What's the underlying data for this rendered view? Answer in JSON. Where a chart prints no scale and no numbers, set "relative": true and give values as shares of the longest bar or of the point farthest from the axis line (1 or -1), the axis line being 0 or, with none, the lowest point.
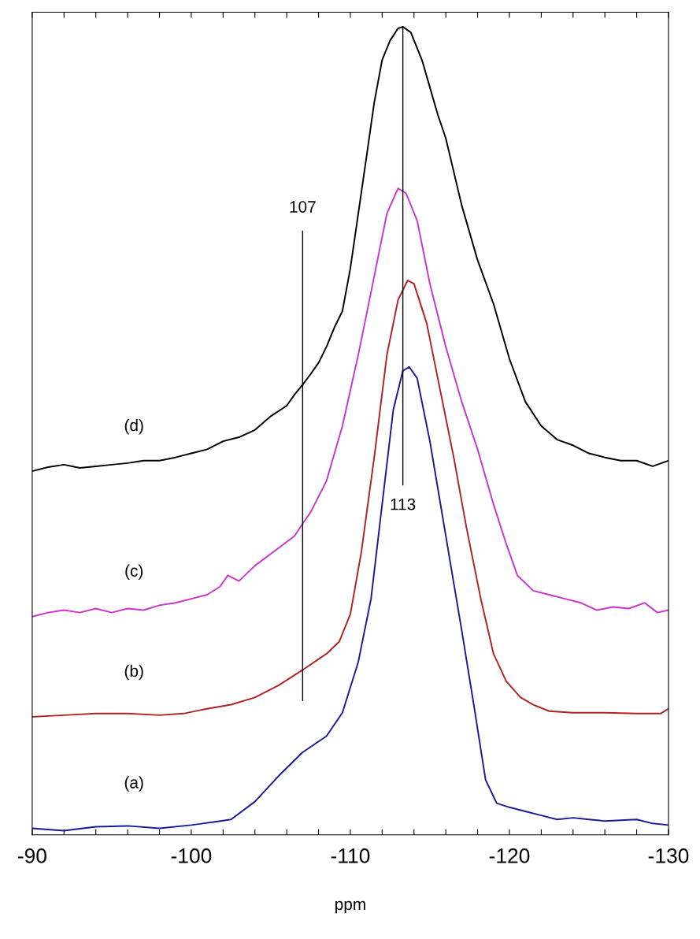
{
  "chart_data": {
    "type": "line",
    "relative": true,
    "xlabel": "ppm",
    "xlim": [
      -90,
      -130
    ],
    "xticks": [
      -90,
      {
        "value": -92,
        "label": null
      },
      {
        "value": -94,
        "label": null
      },
      {
        "value": -96,
        "label": null
      },
      {
        "value": -98,
        "label": null
      },
      -100,
      {
        "value": -102,
        "label": null
      },
      {
        "value": -104,
        "label": null
      },
      {
        "value": -106,
        "label": null
      },
      {
        "value": -108,
        "label": null
      },
      -110,
      {
        "value": -112,
        "label": null
      },
      {
        "value": -114,
        "label": null
      },
      {
        "value": -116,
        "label": null
      },
      {
        "value": -118,
        "label": null
      },
      -120,
      {
        "value": -122,
        "label": null
      },
      {
        "value": -124,
        "label": null
      },
      {
        "value": -126,
        "label": null
      },
      {
        "value": -128,
        "label": null
      },
      -130
    ],
    "tick_labels": "x",
    "grid": false,
    "legend": false,
    "marker": "none",
    "line_style": "solid",
    "annotations": [
      {
        "text": "107",
        "x": -107,
        "y": 0.747
      },
      {
        "text": "113",
        "x": -113.3,
        "y": 0.433
      }
    ],
    "series": [
      {
        "name": "(a)",
        "color": "#1a1a99",
        "x": [
          -90,
          -92,
          -94,
          -96,
          -98,
          -100,
          -101.5,
          -102.5,
          -104,
          -105.5,
          -107,
          -108.5,
          -109.5,
          -110.5,
          -111.3,
          -112,
          -112.7,
          -113.3,
          -113.7,
          -114.2,
          -115,
          -116,
          -117,
          -117.8,
          -118.5,
          -119.2,
          -120,
          -121,
          -122,
          -123,
          -124,
          -125,
          -126,
          -127,
          -128,
          -129,
          -130
        ],
        "values": [
          0.008,
          0.005,
          0.01,
          0.011,
          0.008,
          0.012,
          0.016,
          0.019,
          0.041,
          0.073,
          0.102,
          0.122,
          0.151,
          0.214,
          0.292,
          0.409,
          0.526,
          0.574,
          0.579,
          0.565,
          0.487,
          0.37,
          0.253,
          0.156,
          0.068,
          0.039,
          0.034,
          0.029,
          0.024,
          0.019,
          0.021,
          0.019,
          0.017,
          0.018,
          0.019,
          0.014,
          0.012
        ]
      },
      {
        "name": "(b)",
        "color": "#b22222",
        "x": [
          -90,
          -92,
          -94,
          -96,
          -98,
          -99.5,
          -101,
          -102.5,
          -104,
          -105.5,
          -107,
          -108.5,
          -109.3,
          -110,
          -110.7,
          -111.5,
          -112.3,
          -113,
          -113.6,
          -114,
          -114.8,
          -115.7,
          -116.5,
          -117.3,
          -118.2,
          -119,
          -119.8,
          -120.7,
          -121.5,
          -122.5,
          -124,
          -126,
          -128,
          -129.5,
          -130
        ],
        "values": [
          0.146,
          0.148,
          0.15,
          0.15,
          0.148,
          0.15,
          0.156,
          0.161,
          0.17,
          0.185,
          0.204,
          0.224,
          0.239,
          0.273,
          0.351,
          0.467,
          0.594,
          0.662,
          0.686,
          0.682,
          0.633,
          0.545,
          0.467,
          0.38,
          0.292,
          0.224,
          0.19,
          0.17,
          0.161,
          0.153,
          0.151,
          0.151,
          0.15,
          0.15,
          0.156
        ]
      },
      {
        "name": "(c)",
        "color": "#cc33cc",
        "x": [
          -90,
          -91,
          -92,
          -93,
          -94,
          -95,
          -96,
          -97,
          -98,
          -99,
          -100,
          -101,
          -101.8,
          -102.3,
          -103,
          -104,
          -105.5,
          -106.5,
          -107,
          -107.5,
          -108.5,
          -109.5,
          -110.5,
          -111.5,
          -112.3,
          -113,
          -113.5,
          -114.2,
          -115,
          -116,
          -117,
          -118,
          -119,
          -119.8,
          -120.5,
          -121.5,
          -122.5,
          -123.5,
          -124.5,
          -125.5,
          -126.5,
          -127.5,
          -128.5,
          -129.3,
          -130
        ],
        "values": [
          0.27,
          0.275,
          0.278,
          0.275,
          0.28,
          0.275,
          0.28,
          0.278,
          0.284,
          0.287,
          0.292,
          0.297,
          0.307,
          0.321,
          0.314,
          0.333,
          0.355,
          0.37,
          0.385,
          0.399,
          0.438,
          0.506,
          0.594,
          0.691,
          0.769,
          0.8,
          0.794,
          0.76,
          0.682,
          0.604,
          0.536,
          0.477,
          0.409,
          0.36,
          0.321,
          0.302,
          0.297,
          0.292,
          0.287,
          0.278,
          0.282,
          0.28,
          0.287,
          0.275,
          0.278
        ]
      },
      {
        "name": "(d)",
        "color": "#000000",
        "x": [
          -90,
          -91,
          -92,
          -93,
          -94,
          -95,
          -96,
          -97,
          -98,
          -99,
          -100,
          -101,
          -102,
          -103,
          -104,
          -105,
          -106,
          -106.5,
          -107,
          -107.5,
          -108,
          -108.5,
          -109,
          -109.5,
          -110,
          -110.5,
          -111,
          -111.5,
          -112,
          -112.5,
          -113,
          -113.3,
          -113.8,
          -114.5,
          -115,
          -115.5,
          -116,
          -117,
          -118,
          -119,
          -120,
          -121,
          -122,
          -123,
          -124,
          -125,
          -126,
          -127,
          -128,
          -129,
          -130
        ],
        "values": [
          0.45,
          0.455,
          0.458,
          0.454,
          0.456,
          0.458,
          0.46,
          0.463,
          0.463,
          0.467,
          0.472,
          0.477,
          0.487,
          0.492,
          0.501,
          0.518,
          0.531,
          0.545,
          0.557,
          0.57,
          0.584,
          0.604,
          0.628,
          0.648,
          0.701,
          0.769,
          0.837,
          0.906,
          0.959,
          0.983,
          0.998,
          1.0,
          0.993,
          0.959,
          0.925,
          0.891,
          0.862,
          0.779,
          0.711,
          0.657,
          0.589,
          0.536,
          0.506,
          0.489,
          0.482,
          0.472,
          0.467,
          0.463,
          0.463,
          0.456,
          0.463
        ]
      },
      {
        "color": "#000000",
        "x": [
          -107,
          -107
        ],
        "values": [
          0.747,
          0.166
        ]
      },
      {
        "color": "#000000",
        "x": [
          -113.3,
          -113.3
        ],
        "values": [
          1.0,
          0.433
        ]
      }
    ]
  }
}
